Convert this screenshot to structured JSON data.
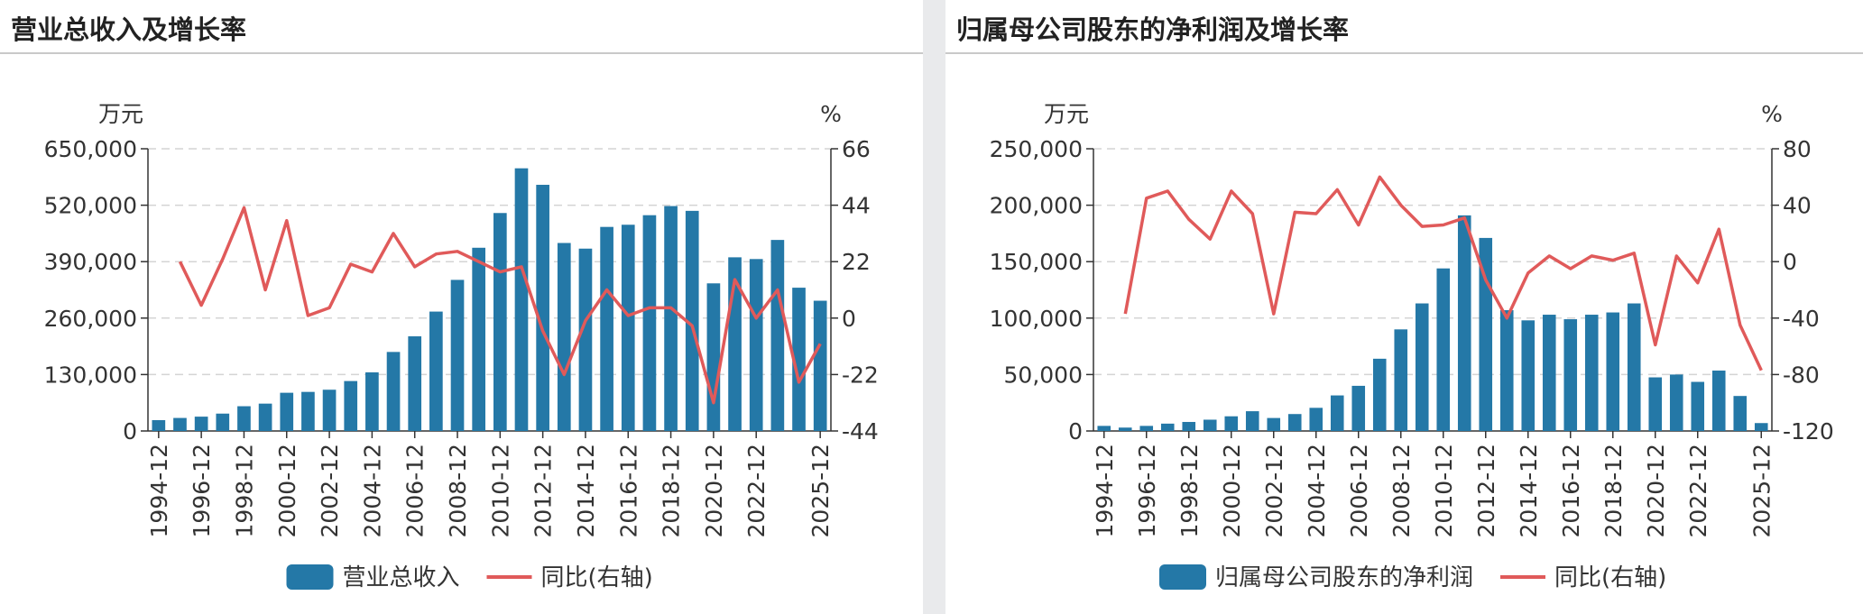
{
  "colors": {
    "bar": "#2478a7",
    "line": "#e05a5a",
    "grid": "#d4d4d4",
    "axis": "#333333"
  },
  "chart_data": [
    {
      "type": "bar",
      "title": "营业总收入及增长率",
      "left_unit": "万元",
      "right_unit": "%",
      "left_axis": {
        "min": 0,
        "max": 650000,
        "ticks": [
          "0",
          "130,000",
          "260,000",
          "390,000",
          "520,000",
          "650,000"
        ]
      },
      "right_axis": {
        "min": -44,
        "max": 66,
        "ticks": [
          "-44",
          "-22",
          "0",
          "22",
          "44",
          "66"
        ]
      },
      "categories": [
        "1994-12",
        "1995-12",
        "1996-12",
        "1997-12",
        "1998-12",
        "1999-12",
        "2000-12",
        "2001-12",
        "2002-12",
        "2003-12",
        "2004-12",
        "2005-12",
        "2006-12",
        "2007-12",
        "2008-12",
        "2009-12",
        "2010-12",
        "2011-12",
        "2012-12",
        "2013-12",
        "2014-12",
        "2015-12",
        "2016-12",
        "2017-12",
        "2018-12",
        "2019-12",
        "2020-12",
        "2021-12",
        "2022-12",
        "2023-12",
        "2024-12",
        "2025-12"
      ],
      "x_tick_labels": [
        "1994-12",
        "1996-12",
        "1998-12",
        "2000-12",
        "2002-12",
        "2004-12",
        "2006-12",
        "2008-12",
        "2010-12",
        "2012-12",
        "2014-12",
        "2016-12",
        "2018-12",
        "2020-12",
        "2022-12",
        "2025-12"
      ],
      "series": [
        {
          "name": "营业总收入",
          "kind": "bar",
          "axis": "left",
          "values": [
            25000,
            30000,
            33000,
            40000,
            57000,
            63000,
            88000,
            90000,
            95000,
            115000,
            135000,
            182000,
            218000,
            275000,
            348000,
            422000,
            502000,
            605000,
            567000,
            433000,
            420000,
            470000,
            475000,
            497000,
            518000,
            507000,
            340000,
            400000,
            396000,
            440000,
            330000,
            300000
          ]
        },
        {
          "name": "同比(右轴)",
          "kind": "line",
          "axis": "right",
          "values": [
            null,
            22,
            5,
            23,
            43,
            11,
            38,
            1,
            4,
            21,
            18,
            33,
            20,
            25,
            26,
            22,
            18,
            20,
            -5,
            -22,
            -1,
            11,
            1,
            4,
            4,
            -3,
            -33,
            15,
            0,
            11,
            -25,
            -10
          ]
        }
      ],
      "legend": [
        "营业总收入",
        "同比(右轴)"
      ]
    },
    {
      "type": "bar",
      "title": "归属母公司股东的净利润及增长率",
      "left_unit": "万元",
      "right_unit": "%",
      "left_axis": {
        "min": 0,
        "max": 250000,
        "ticks": [
          "0",
          "50,000",
          "100,000",
          "150,000",
          "200,000",
          "250,000"
        ]
      },
      "right_axis": {
        "min": -120,
        "max": 80,
        "ticks": [
          "-120",
          "-80",
          "-40",
          "0",
          "40",
          "80"
        ]
      },
      "categories": [
        "1994-12",
        "1995-12",
        "1996-12",
        "1997-12",
        "1998-12",
        "1999-12",
        "2000-12",
        "2001-12",
        "2002-12",
        "2003-12",
        "2004-12",
        "2005-12",
        "2006-12",
        "2007-12",
        "2008-12",
        "2009-12",
        "2010-12",
        "2011-12",
        "2012-12",
        "2013-12",
        "2014-12",
        "2015-12",
        "2016-12",
        "2017-12",
        "2018-12",
        "2019-12",
        "2020-12",
        "2021-12",
        "2022-12",
        "2023-12",
        "2024-12",
        "2025-12"
      ],
      "x_tick_labels": [
        "1994-12",
        "1996-12",
        "1998-12",
        "2000-12",
        "2002-12",
        "2004-12",
        "2006-12",
        "2008-12",
        "2010-12",
        "2012-12",
        "2014-12",
        "2016-12",
        "2018-12",
        "2020-12",
        "2022-12",
        "2025-12"
      ],
      "series": [
        {
          "name": "归属母公司股东的净利润",
          "kind": "bar",
          "axis": "left",
          "values": [
            4500,
            3000,
            4500,
            6500,
            8000,
            10000,
            13000,
            17500,
            11500,
            15000,
            20500,
            31500,
            40000,
            64000,
            90000,
            113000,
            144000,
            191000,
            171000,
            107000,
            98000,
            103000,
            99000,
            103000,
            105000,
            113000,
            47500,
            50000,
            43500,
            53500,
            31000,
            7000
          ]
        },
        {
          "name": "同比(右轴)",
          "kind": "line",
          "axis": "right",
          "values": [
            null,
            -37,
            45,
            50,
            30,
            16,
            50,
            34,
            -37,
            35,
            34,
            51,
            26,
            60,
            40,
            25,
            26,
            31,
            -13,
            -40,
            -8,
            4,
            -5,
            4,
            1,
            6,
            -59,
            4,
            -15,
            23,
            -45,
            -77
          ]
        }
      ],
      "legend": [
        "归属母公司股东的净利润",
        "同比(右轴)"
      ]
    }
  ]
}
